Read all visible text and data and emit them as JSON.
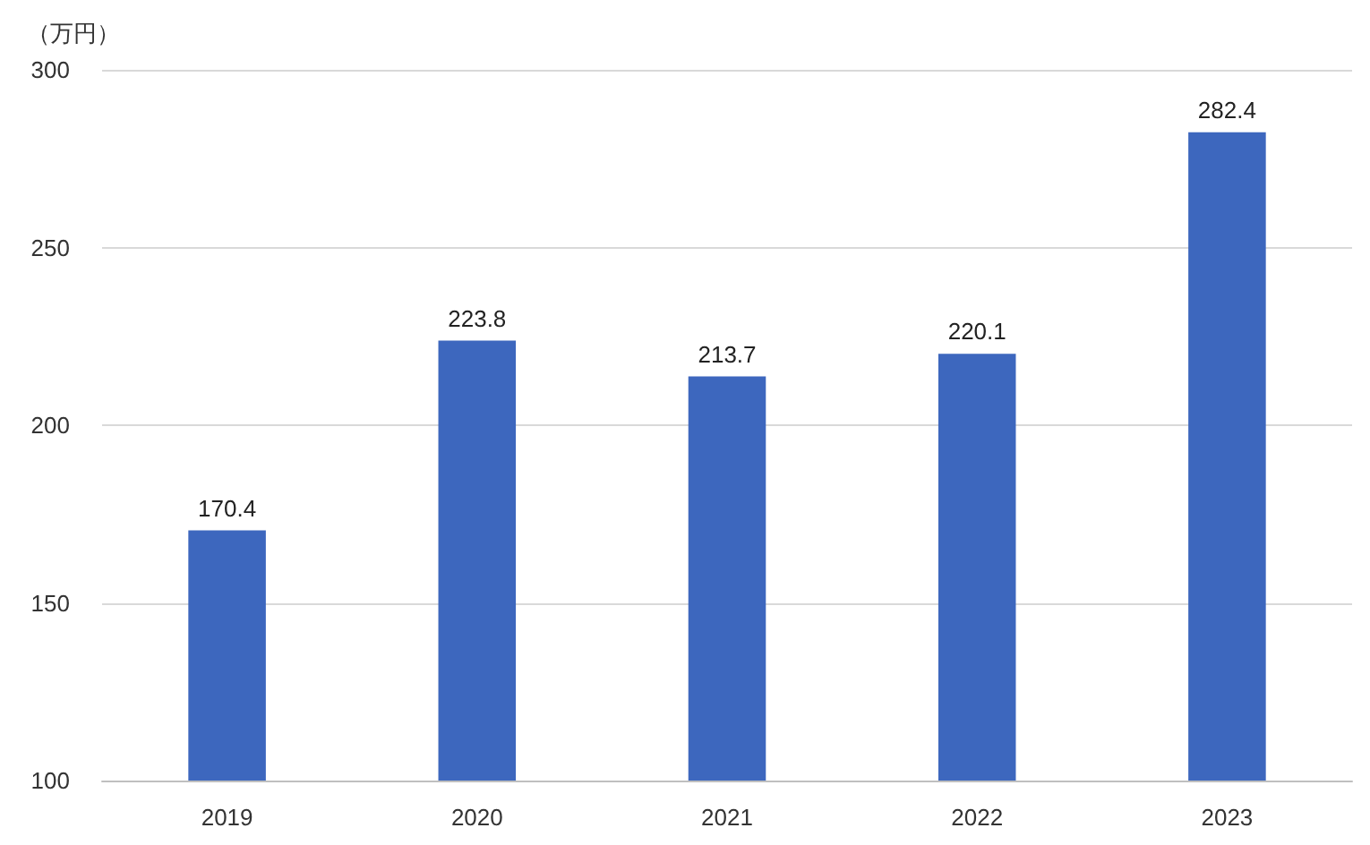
{
  "chart_data": {
    "type": "bar",
    "ylabel": "（万円）",
    "categories": [
      "2019",
      "2020",
      "2021",
      "2022",
      "2023"
    ],
    "values": [
      170.4,
      223.8,
      213.7,
      220.1,
      282.4
    ],
    "color": "#3d67be",
    "ylim": [
      100,
      300
    ],
    "yticks": [
      100,
      150,
      200,
      250,
      300
    ],
    "grid": "y",
    "data_labels": true
  }
}
